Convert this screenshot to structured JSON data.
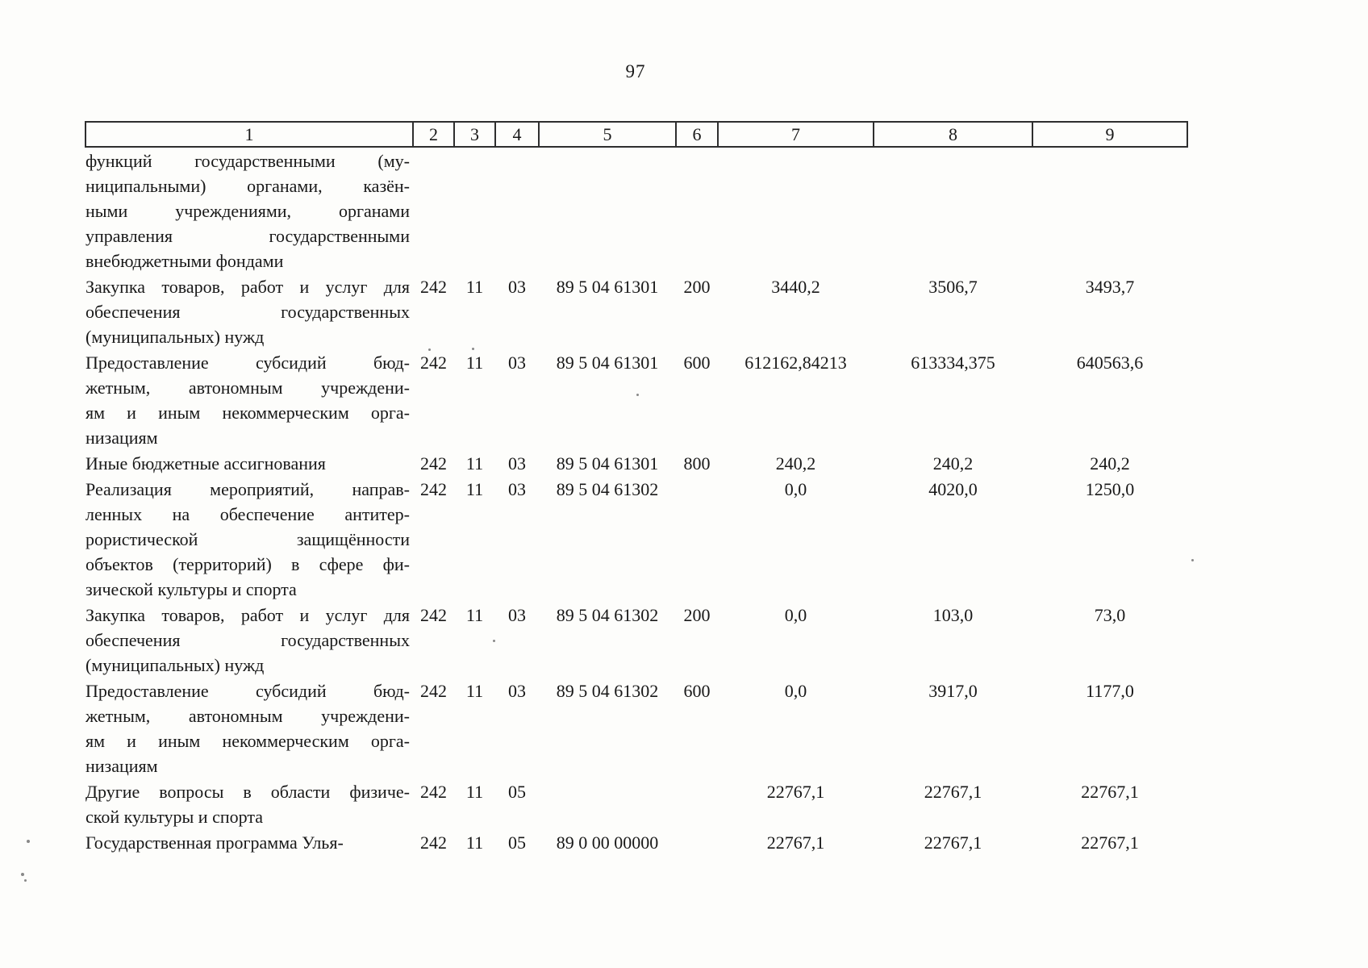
{
  "page": {
    "number": "97"
  },
  "table": {
    "header": [
      "1",
      "2",
      "3",
      "4",
      "5",
      "6",
      "7",
      "8",
      "9"
    ],
    "rows": [
      {
        "name_lines": [
          "функций государственными (му-",
          "ниципальными) органами, казён-",
          "ными учреждениями, органами",
          "управления государственными",
          "внебюджетными фондами"
        ],
        "c2": "",
        "c3": "",
        "c4": "",
        "c5": "",
        "c6": "",
        "c7": "",
        "c8": "",
        "c9": ""
      },
      {
        "name_lines": [
          "Закупка товаров, работ и услуг для",
          "обеспечения государственных",
          "(муниципальных) нужд"
        ],
        "c2": "242",
        "c3": "11",
        "c4": "03",
        "c5": "89 5 04 61301",
        "c6": "200",
        "c7": "3440,2",
        "c8": "3506,7",
        "c9": "3493,7"
      },
      {
        "name_lines": [
          "Предоставление субсидий бюд-",
          "жетным, автономным учреждени-",
          "ям и иным некоммерческим орга-",
          "низациям"
        ],
        "c2": "242",
        "c3": "11",
        "c4": "03",
        "c5": "89 5 04 61301",
        "c6": "600",
        "c7": "612162,84213",
        "c8": "613334,375",
        "c9": "640563,6"
      },
      {
        "name_lines": [
          "Иные бюджетные ассигнования"
        ],
        "c2": "242",
        "c3": "11",
        "c4": "03",
        "c5": "89 5 04 61301",
        "c6": "800",
        "c7": "240,2",
        "c8": "240,2",
        "c9": "240,2"
      },
      {
        "name_lines": [
          "Реализация мероприятий, направ-",
          "ленных на обеспечение антитер-",
          "рористической защищённости",
          "объектов (территорий) в сфере фи-",
          "зической культуры и спорта"
        ],
        "c2": "242",
        "c3": "11",
        "c4": "03",
        "c5": "89 5 04 61302",
        "c6": "",
        "c7": "0,0",
        "c8": "4020,0",
        "c9": "1250,0"
      },
      {
        "name_lines": [
          "Закупка товаров, работ и услуг для",
          "обеспечения государственных",
          "(муниципальных) нужд"
        ],
        "c2": "242",
        "c3": "11",
        "c4": "03",
        "c5": "89 5 04 61302",
        "c6": "200",
        "c7": "0,0",
        "c8": "103,0",
        "c9": "73,0"
      },
      {
        "name_lines": [
          "Предоставление субсидий бюд-",
          "жетным, автономным учреждени-",
          "ям и иным некоммерческим орга-",
          "низациям"
        ],
        "c2": "242",
        "c3": "11",
        "c4": "03",
        "c5": "89 5 04 61302",
        "c6": "600",
        "c7": "0,0",
        "c8": "3917,0",
        "c9": "1177,0"
      },
      {
        "name_lines": [
          "Другие вопросы в области физиче-",
          "ской культуры и спорта"
        ],
        "c2": "242",
        "c3": "11",
        "c4": "05",
        "c5": "",
        "c6": "",
        "c7": "22767,1",
        "c8": "22767,1",
        "c9": "22767,1"
      },
      {
        "name_lines": [
          "Государственная программа Улья-"
        ],
        "c2": "242",
        "c3": "11",
        "c4": "05",
        "c5": "89 0 00 00000",
        "c6": "",
        "c7": "22767,1",
        "c8": "22767,1",
        "c9": "22767,1"
      }
    ]
  }
}
